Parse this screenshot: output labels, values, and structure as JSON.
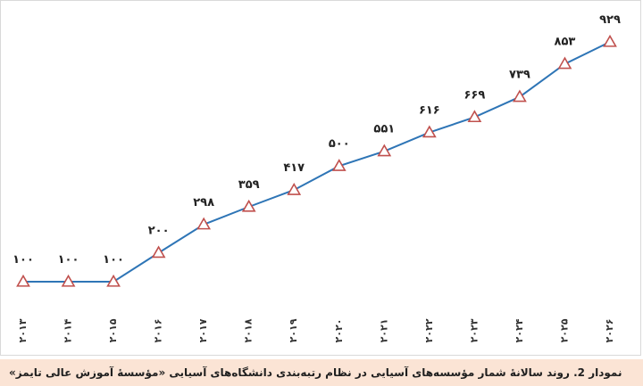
{
  "chart_data": {
    "type": "line",
    "title": "",
    "xlabel": "",
    "ylabel": "",
    "categories": [
      "۲۰۱۳",
      "۲۰۱۴",
      "۲۰۱۵",
      "۲۰۱۶",
      "۲۰۱۷",
      "۲۰۱۸",
      "۲۰۱۹",
      "۲۰۲۰",
      "۲۰۲۱",
      "۲۰۲۲",
      "۲۰۲۳",
      "۲۰۲۴",
      "۲۰۲۵",
      "۲۰۲۶"
    ],
    "series": [
      {
        "values": [
          100,
          100,
          100,
          200,
          298,
          359,
          417,
          500,
          551,
          616,
          669,
          739,
          853,
          929
        ],
        "labels": [
          "۱۰۰",
          "۱۰۰",
          "۱۰۰",
          "۲۰۰",
          "۲۹۸",
          "۳۵۹",
          "۴۱۷",
          "۵۰۰",
          "۵۵۱",
          "۶۱۶",
          "۶۶۹",
          "۷۳۹",
          "۸۵۳",
          "۹۲۹"
        ],
        "color": "#2e75b6",
        "marker": "triangle",
        "marker_color": "#c0504d"
      }
    ],
    "ylim": [
      100,
      929
    ],
    "grid": false,
    "legend": "none"
  },
  "caption": "نمودار 2. روند سالانهٔ شمار مؤسسه‌های آسیایی در نظام رتبه‌بندی دانشگاه‌های آسیایی «مؤسسهٔ آموزش عالی تایمز»"
}
